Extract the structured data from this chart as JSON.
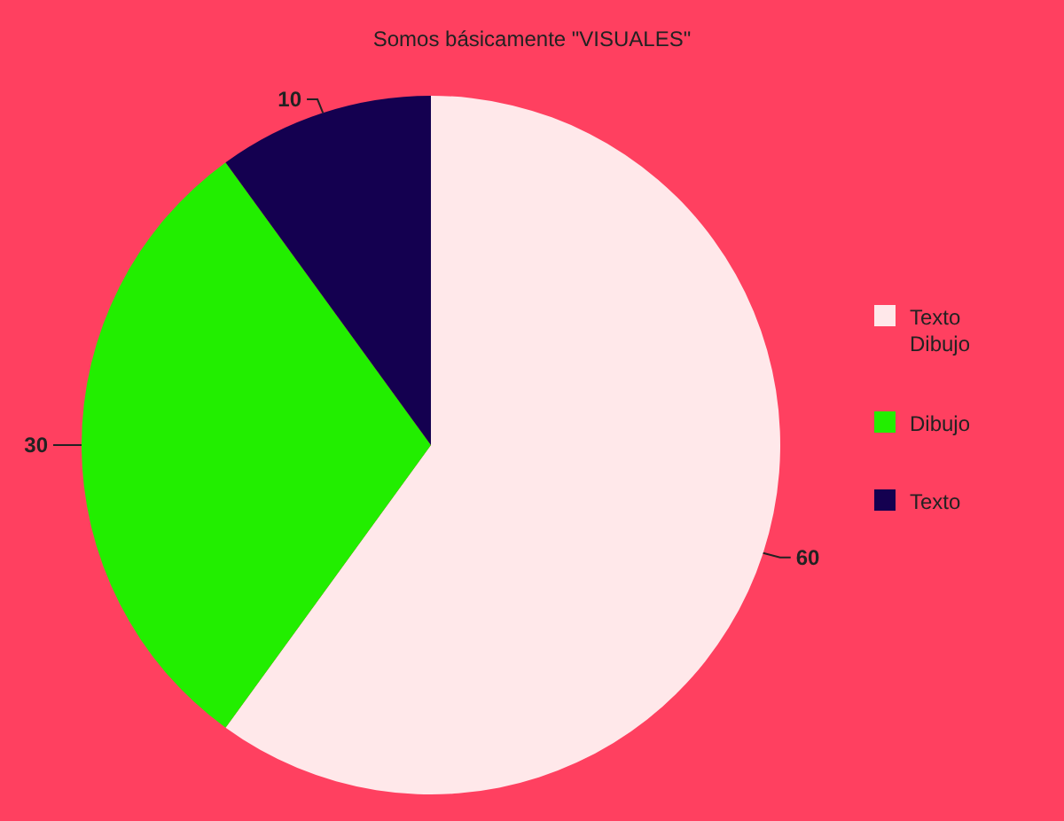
{
  "chart_data": {
    "type": "pie",
    "title": "Somos básicamente \"VISUALES\"",
    "categories": [
      "Texto Dibujo",
      "Dibujo",
      "Texto"
    ],
    "values": [
      60,
      30,
      10
    ],
    "colors": [
      "#ffe8ea",
      "#22ee00",
      "#140050"
    ],
    "data_labels": true,
    "legend": "right"
  }
}
